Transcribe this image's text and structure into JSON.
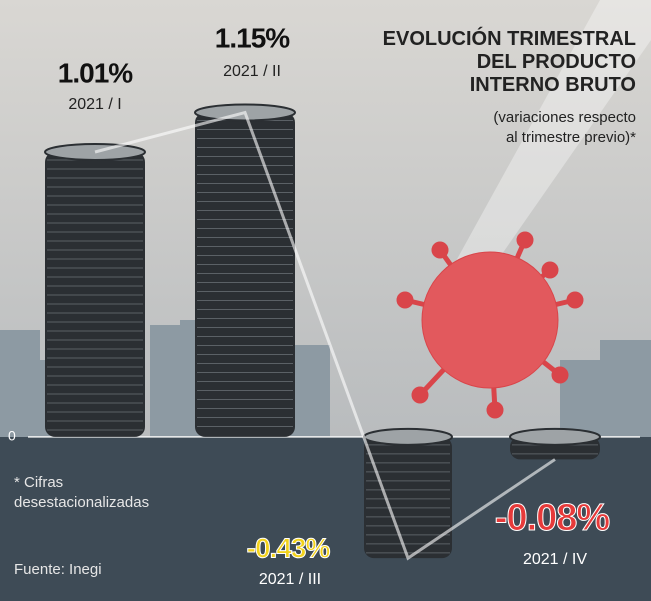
{
  "chart_data": {
    "type": "bar",
    "title": "EVOLUCIÓN TRIMESTRAL DEL PRODUCTO INTERNO BRUTO",
    "subtitle": "(variaciones respecto al trimestre previo)*",
    "note": "* Cifras desestacionalizadas",
    "source": "Fuente: Inegi",
    "categories": [
      "2021 / I",
      "2021 / II",
      "2021 / III",
      "2021 / IV"
    ],
    "values": [
      1.01,
      1.15,
      -0.43,
      -0.08
    ],
    "value_labels": [
      "1.01%",
      "1.15%",
      "-0.43%",
      "-0.08%"
    ],
    "label_colors": [
      "#111111",
      "#111111",
      "#f2d21b",
      "#e63a3a"
    ],
    "color": "#2b2f33",
    "ylim": [
      -0.55,
      1.4
    ],
    "yticks": [
      0
    ]
  }
}
